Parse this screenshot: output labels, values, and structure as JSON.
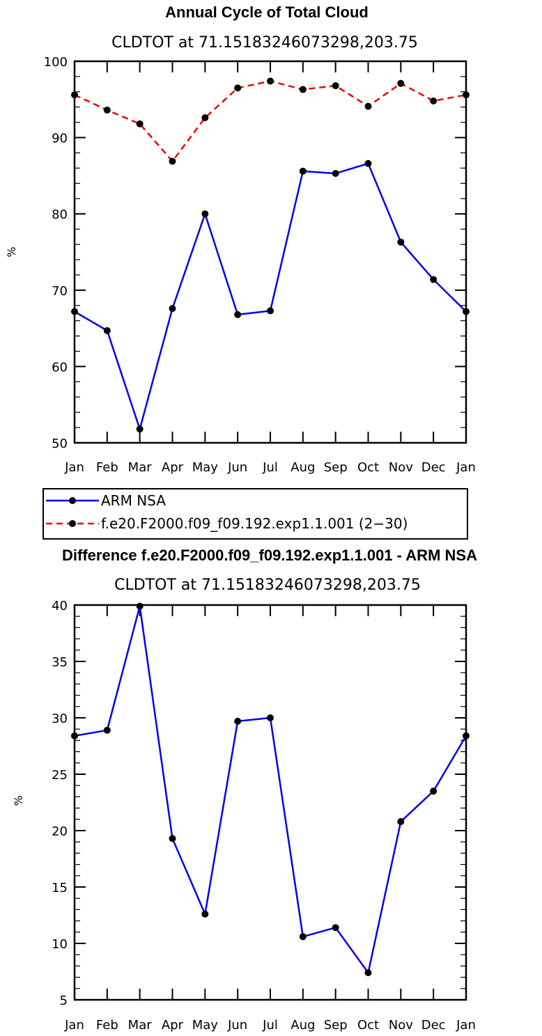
{
  "chart_data": [
    {
      "type": "line",
      "title": "Annual Cycle of Total Cloud",
      "subtitle": "CLDTOT at 71.15183246073298,203.75",
      "ylabel": "%",
      "xlabel": "",
      "ylim": [
        50,
        100
      ],
      "yticks": [
        "50",
        "60",
        "70",
        "80",
        "90",
        "100"
      ],
      "categories": [
        "Jan",
        "Feb",
        "Mar",
        "Apr",
        "May",
        "Jun",
        "Jul",
        "Aug",
        "Sep",
        "Oct",
        "Nov",
        "Dec",
        "Jan"
      ],
      "series": [
        {
          "name": "ARM NSA",
          "color": "#0000ee",
          "dash": "solid",
          "values": [
            67.2,
            64.7,
            51.8,
            67.6,
            80.0,
            66.8,
            67.3,
            85.6,
            85.3,
            86.6,
            76.3,
            71.4,
            67.2
          ]
        },
        {
          "name": "f.e20.F2000.f09_f09.192.exp1.1.001 (2-30)",
          "color": "#ee0000",
          "dash": "dashed",
          "values": [
            95.6,
            93.6,
            91.8,
            86.9,
            92.6,
            96.5,
            97.4,
            96.3,
            96.8,
            94.1,
            97.1,
            94.8,
            95.6
          ]
        }
      ],
      "legend": [
        "ARM NSA",
        "f.e20.F2000.f09_f09.192.exp1.1.001 (2−30)"
      ]
    },
    {
      "type": "line",
      "title": "Difference f.e20.F2000.f09_f09.192.exp1.1.001 - ARM NSA",
      "subtitle": "CLDTOT at 71.15183246073298,203.75",
      "ylabel": "%",
      "xlabel": "",
      "ylim": [
        5,
        40
      ],
      "yticks": [
        "5",
        "10",
        "15",
        "20",
        "25",
        "30",
        "35",
        "40"
      ],
      "categories": [
        "Jan",
        "Feb",
        "Mar",
        "Apr",
        "May",
        "Jun",
        "Jul",
        "Aug",
        "Sep",
        "Oct",
        "Nov",
        "Dec",
        "Jan"
      ],
      "series": [
        {
          "name": "Difference",
          "color": "#0000ee",
          "dash": "solid",
          "values": [
            28.4,
            28.9,
            39.9,
            19.3,
            12.6,
            29.7,
            30.0,
            10.6,
            11.4,
            7.4,
            20.8,
            23.5,
            28.4
          ]
        }
      ]
    }
  ]
}
